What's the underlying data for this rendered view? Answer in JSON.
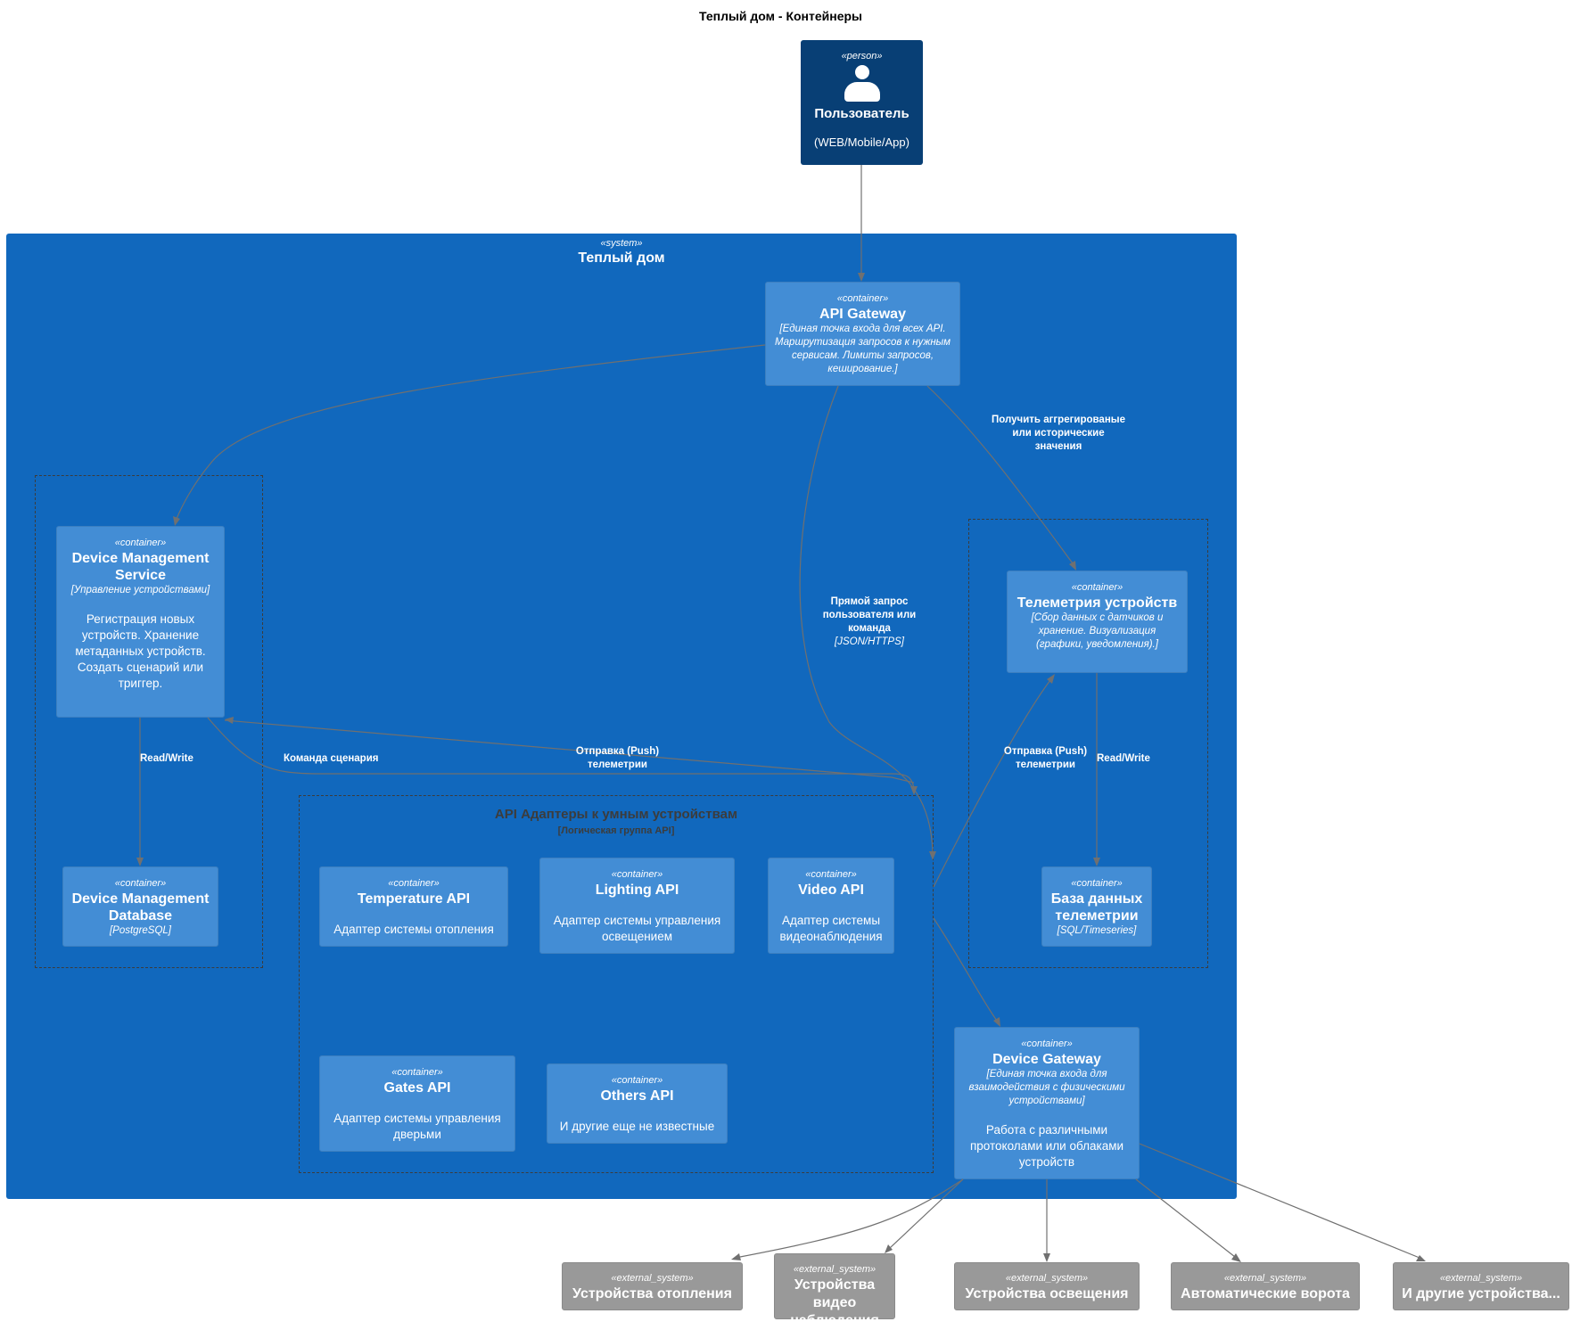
{
  "title": "Теплый дом - Контейнеры",
  "person": {
    "stereotype": "«person»",
    "name": "Пользователь",
    "description": "(WEB/Mobile/App)",
    "icon": "person-icon"
  },
  "system": {
    "stereotype": "«system»",
    "name": "Теплый дом"
  },
  "group_api_adapters": {
    "title": "API Адаптеры к умным устройствам",
    "subtitle": "[Логическая группа API]"
  },
  "containers": {
    "api_gateway": {
      "stereotype": "«container»",
      "name": "API Gateway",
      "tech": "[Единая точка входа для всех API. Маршрутизация запросов к нужным сервисам. Лимиты запросов, кеширование.]"
    },
    "device_management_service": {
      "stereotype": "«container»",
      "name": "Device Management Service",
      "tech": "[Управление устройствами]",
      "description": "Регистрация новых устройств. Хранение метаданных устройств. Создать сценарий или триггер."
    },
    "device_management_database": {
      "stereotype": "«container»",
      "name": "Device Management Database",
      "tech": "[PostgreSQL]"
    },
    "telemetry": {
      "stereotype": "«container»",
      "name": "Телеметрия устройств",
      "tech": "[Сбор данных с датчиков и хранение. Визуализация (графики, уведомления).]"
    },
    "telemetry_db": {
      "stereotype": "«container»",
      "name": "База данных телеметрии",
      "tech": "[SQL/Timeseries]"
    },
    "temperature_api": {
      "stereotype": "«container»",
      "name": "Temperature API",
      "description": "Адаптер системы отопления"
    },
    "lighting_api": {
      "stereotype": "«container»",
      "name": "Lighting API",
      "description": "Адаптер системы управления освещением"
    },
    "video_api": {
      "stereotype": "«container»",
      "name": "Video API",
      "description": "Адаптер системы видеонаблюдения"
    },
    "gates_api": {
      "stereotype": "«container»",
      "name": "Gates API",
      "description": "Адаптер системы управления дверьми"
    },
    "others_api": {
      "stereotype": "«container»",
      "name": "Others API",
      "description": "И другие еще не известные"
    },
    "device_gateway": {
      "stereotype": "«container»",
      "name": "Device Gateway",
      "tech": "[Единая точка входа для взаимодействия с физическими устройствами]",
      "description": "Работа с различными протоколами или облаками устройств"
    }
  },
  "external_systems": [
    {
      "stereotype": "«external_system»",
      "name": "Устройства отопления"
    },
    {
      "stereotype": "«external_system»",
      "name": "Устройства видео наблюдения"
    },
    {
      "stereotype": "«external_system»",
      "name": "Устройства освещения"
    },
    {
      "stereotype": "«external_system»",
      "name": "Автоматические ворота"
    },
    {
      "stereotype": "«external_system»",
      "name": "И другие устройства..."
    }
  ],
  "relations": {
    "get_aggregated": "Получить аггрегированые или исторические значения",
    "direct_request": "Прямой запрос пользователя или команда",
    "direct_request_tech": "[JSON/HTTPS]",
    "push_telemetry_left": "Отправка (Push) телеметрии",
    "push_telemetry_right": "Отправка (Push) телеметрии",
    "scenario_command": "Команда сценария",
    "read_write_left": "Read/Write",
    "read_write_right": "Read/Write"
  }
}
